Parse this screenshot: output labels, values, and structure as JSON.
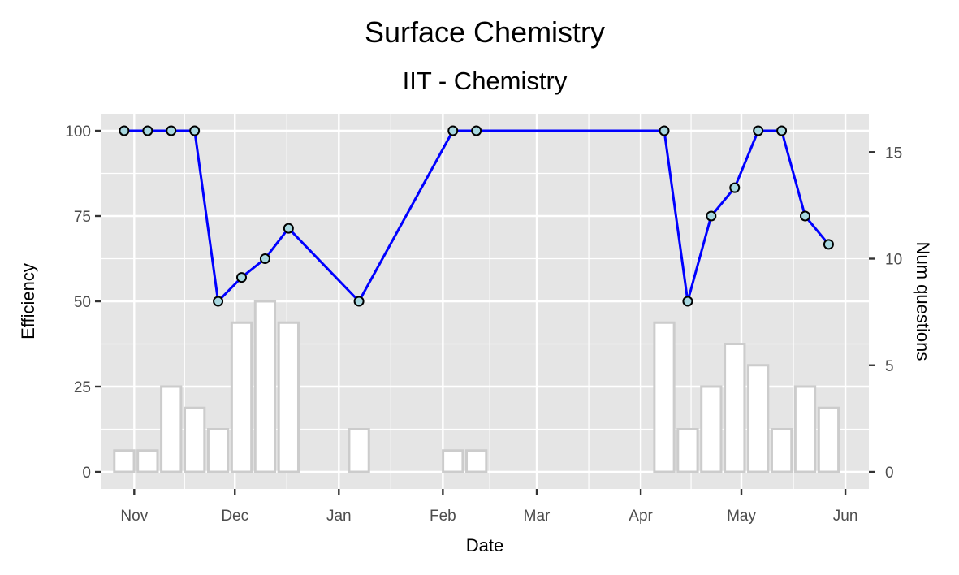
{
  "chart_data": {
    "type": "bar+line",
    "title": "Surface Chemistry",
    "subtitle": "IIT - Chemistry",
    "xlabel": "Date",
    "ylabel": "Efficiency",
    "y2label": "Num questions",
    "x_ticks": [
      "Nov",
      "Dec",
      "Jan",
      "Feb",
      "Mar",
      "Apr",
      "May",
      "Jun"
    ],
    "xlim": [
      "2017-10-22",
      "2018-06-08"
    ],
    "ylim": [
      -5,
      105
    ],
    "y_ticks": [
      0,
      25,
      50,
      75,
      100
    ],
    "y2_ticks": [
      0,
      5,
      10,
      15
    ],
    "y2_max_maps_to_y": 100,
    "y2_max": 16,
    "grid": true,
    "legend": "none",
    "series": [
      {
        "kind": "bar",
        "x": [
          "2017-10-29",
          "2017-11-05",
          "2017-11-12",
          "2017-11-19",
          "2017-11-26",
          "2017-12-03",
          "2017-12-10",
          "2017-12-17",
          "2018-01-07",
          "2018-02-04",
          "2018-02-11",
          "2018-04-08",
          "2018-04-15",
          "2018-04-22",
          "2018-04-29",
          "2018-05-06",
          "2018-05-13",
          "2018-05-20",
          "2018-05-27"
        ],
        "values": [
          1,
          1,
          4,
          3,
          2,
          7,
          8,
          7,
          2,
          1,
          1,
          7,
          2,
          4,
          6,
          5,
          2,
          4,
          3
        ]
      },
      {
        "kind": "line",
        "x": [
          "2017-10-29",
          "2017-11-05",
          "2017-11-12",
          "2017-11-19",
          "2017-11-26",
          "2017-12-03",
          "2017-12-10",
          "2017-12-17",
          "2018-01-07",
          "2018-02-04",
          "2018-02-11",
          "2018-04-08",
          "2018-04-15",
          "2018-04-22",
          "2018-04-29",
          "2018-05-06",
          "2018-05-13",
          "2018-05-20",
          "2018-05-27"
        ],
        "values": [
          100,
          100,
          100,
          100,
          50,
          57,
          62.5,
          71.4,
          50,
          100,
          100,
          100,
          50,
          75,
          83.3,
          100,
          100,
          75,
          66.7
        ]
      }
    ],
    "colors": {
      "panel_bg": "#e5e5e5",
      "grid": "#ffffff",
      "line": "#0000ff",
      "point_fill": "#a8d8e0",
      "point_stroke": "#000000",
      "bar_fill": "#ffffff",
      "bar_stroke": "#cccccc",
      "tick_text": "#4d4d4d"
    }
  }
}
